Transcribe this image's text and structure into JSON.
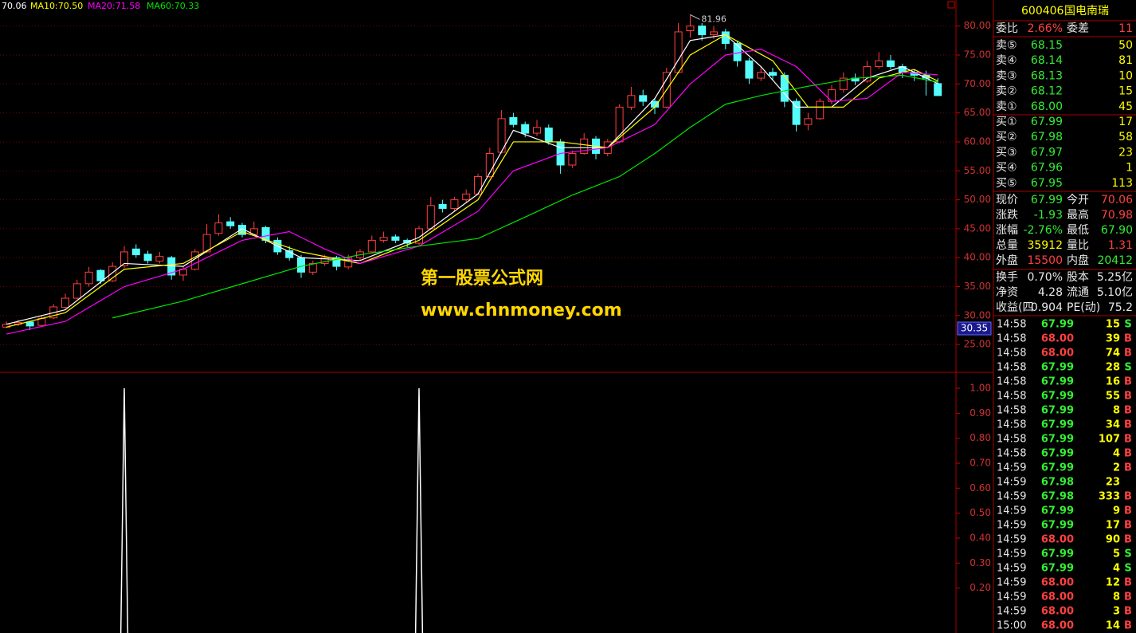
{
  "chart_data": [
    {
      "type": "candlestick",
      "candles": [
        [
          28,
          29,
          27.8,
          28.5
        ],
        [
          28.5,
          29.3,
          28.2,
          28.8
        ],
        [
          28.9,
          29.1,
          27.5,
          28.2
        ],
        [
          28.3,
          30,
          28,
          29.5
        ],
        [
          29.6,
          32,
          29.4,
          31.5
        ],
        [
          31.4,
          33.8,
          31,
          33
        ],
        [
          33,
          36.2,
          32.8,
          35.5
        ],
        [
          35.5,
          38.4,
          35,
          37.5
        ],
        [
          37.8,
          38,
          35.5,
          36
        ],
        [
          36,
          39.2,
          35.8,
          38.5
        ],
        [
          38.6,
          42,
          38.2,
          41
        ],
        [
          41.5,
          42.3,
          40,
          40.5
        ],
        [
          40.6,
          41.2,
          39,
          39.5
        ],
        [
          39.4,
          41,
          39,
          40.2
        ],
        [
          40,
          40.3,
          36.2,
          37
        ],
        [
          37,
          38.6,
          36,
          38
        ],
        [
          38,
          41.5,
          37.8,
          41
        ],
        [
          41,
          45.8,
          40.8,
          44
        ],
        [
          44.2,
          47.5,
          43.8,
          46
        ],
        [
          46.2,
          47,
          45,
          45.5
        ],
        [
          45.6,
          46,
          43.5,
          44
        ],
        [
          44,
          46.2,
          43.8,
          45
        ],
        [
          45.2,
          45.5,
          42.5,
          43
        ],
        [
          43,
          43.5,
          40.5,
          41
        ],
        [
          41.2,
          42,
          39.5,
          40
        ],
        [
          40,
          40.5,
          36.5,
          37.5
        ],
        [
          37.5,
          39.5,
          37,
          39
        ],
        [
          39,
          40.5,
          38.6,
          40
        ],
        [
          40,
          40.3,
          37.8,
          38.5
        ],
        [
          38.4,
          40.5,
          38,
          40
        ],
        [
          40,
          41.5,
          39.6,
          41
        ],
        [
          41,
          43.8,
          40.8,
          43
        ],
        [
          43,
          44.5,
          42.6,
          43.5
        ],
        [
          43.6,
          44,
          42.5,
          43
        ],
        [
          43,
          43.3,
          41.8,
          42.5
        ],
        [
          42.5,
          45.5,
          42.2,
          45
        ],
        [
          45,
          50.5,
          44.8,
          49
        ],
        [
          49.2,
          50,
          47.8,
          48.5
        ],
        [
          48.5,
          50.5,
          48,
          50
        ],
        [
          50,
          51.8,
          49.5,
          51
        ],
        [
          51,
          54.5,
          50.8,
          54
        ],
        [
          54,
          59,
          53.8,
          58
        ],
        [
          58.2,
          65.5,
          58,
          64
        ],
        [
          64.2,
          65,
          62.5,
          63
        ],
        [
          63,
          63.5,
          60.8,
          61.5
        ],
        [
          61.5,
          63.8,
          61,
          62.5
        ],
        [
          62.4,
          63,
          59.5,
          60
        ],
        [
          60,
          60.5,
          54.5,
          56
        ],
        [
          56,
          58.5,
          55.5,
          58
        ],
        [
          58,
          61.5,
          57.8,
          60.5
        ],
        [
          60.5,
          61,
          57,
          58
        ],
        [
          58,
          60.5,
          57.5,
          60
        ],
        [
          60,
          66.5,
          59.8,
          66
        ],
        [
          66,
          69.5,
          65.5,
          68
        ],
        [
          68,
          69,
          66.2,
          67
        ],
        [
          67,
          67.5,
          64.8,
          66
        ],
        [
          66,
          72.8,
          65.8,
          72
        ],
        [
          72,
          80.5,
          71.8,
          79
        ],
        [
          79.2,
          81.96,
          78,
          80
        ],
        [
          80,
          80.5,
          77.5,
          78.5
        ],
        [
          78.5,
          80,
          77.8,
          79
        ],
        [
          79,
          79.5,
          76,
          77
        ],
        [
          77,
          77.5,
          73,
          74
        ],
        [
          74,
          74.5,
          70,
          71
        ],
        [
          71,
          73,
          70.5,
          72
        ],
        [
          72,
          72.8,
          70.8,
          71.5
        ],
        [
          71.5,
          72,
          66,
          67
        ],
        [
          67,
          67.5,
          61.8,
          63
        ],
        [
          63,
          65,
          62,
          64
        ],
        [
          64,
          67.5,
          63.8,
          67
        ],
        [
          67,
          69.8,
          66.5,
          69
        ],
        [
          69,
          72,
          68.5,
          71
        ],
        [
          71,
          71.8,
          69.8,
          70.5
        ],
        [
          70.5,
          74,
          70.2,
          73
        ],
        [
          73,
          75.5,
          72.6,
          74
        ],
        [
          74,
          75,
          72.5,
          73
        ],
        [
          73,
          73.5,
          71,
          72
        ],
        [
          72,
          72.5,
          70.5,
          71.5
        ],
        [
          71.5,
          72.3,
          68,
          71
        ],
        [
          70.06,
          70.98,
          67.9,
          67.99
        ]
      ],
      "series": [
        {
          "name": "70.06",
          "color": "#ffffff",
          "x": [
            0,
            5,
            10,
            15,
            20,
            25,
            30,
            35,
            40,
            43,
            47,
            51,
            55,
            58,
            61,
            64,
            67,
            70,
            73,
            76,
            79
          ],
          "values": [
            28.5,
            31,
            39,
            38.5,
            45,
            40,
            39.5,
            43.5,
            51,
            62,
            59,
            59,
            67.5,
            77.5,
            78.5,
            73,
            66,
            66,
            71,
            73,
            70.06
          ]
        },
        {
          "name": "MA10:70.50",
          "color": "#ffff00",
          "x": [
            0,
            5,
            10,
            15,
            20,
            25,
            30,
            35,
            40,
            43,
            47,
            51,
            55,
            58,
            61,
            65,
            68,
            71,
            74,
            77,
            79
          ],
          "values": [
            28,
            30.5,
            38,
            39,
            44.5,
            41,
            39,
            43,
            50,
            60,
            60,
            59,
            66,
            75,
            78.5,
            74,
            66,
            66,
            71,
            72.5,
            70.5
          ]
        },
        {
          "name": "MA20:71.58",
          "color": "#ff00ff",
          "x": [
            0,
            5,
            10,
            15,
            20,
            24,
            27,
            30,
            35,
            40,
            43,
            47,
            51,
            55,
            58,
            61,
            64,
            67,
            70,
            73,
            76,
            79
          ],
          "values": [
            26.8,
            29,
            35,
            38,
            43,
            44.5,
            41.5,
            39,
            42,
            48,
            55,
            58,
            59,
            63,
            70,
            75,
            76,
            73,
            67,
            67.5,
            72,
            71.58
          ]
        },
        {
          "name": "MA60:70.33",
          "color": "#00e600",
          "x": [
            9,
            15,
            20,
            25,
            30,
            35,
            40,
            44,
            48,
            52,
            55,
            58,
            61,
            64,
            68,
            72,
            76,
            79
          ],
          "values": [
            29.6,
            32.5,
            35.5,
            38.5,
            40.5,
            42,
            43.3,
            47,
            50.8,
            54,
            58,
            62.5,
            66.5,
            68,
            69.6,
            71,
            71.5,
            70.33
          ]
        }
      ],
      "ylim": [
        20.2,
        84.5
      ],
      "yticks": [
        {
          "value": 25,
          "label": "25.00"
        },
        {
          "value": 30,
          "label": "30.00"
        },
        {
          "value": 35,
          "label": "35.00"
        },
        {
          "value": 40,
          "label": "40.00"
        },
        {
          "value": 45,
          "label": "45.00"
        },
        {
          "value": 50,
          "label": "50.00"
        },
        {
          "value": 55,
          "label": "55.00"
        },
        {
          "value": 60,
          "label": "60.00"
        },
        {
          "value": 65,
          "label": "65.00"
        },
        {
          "value": 70,
          "label": "70.00"
        },
        {
          "value": 75,
          "label": "75.00"
        },
        {
          "value": 80,
          "label": "80.00"
        }
      ],
      "grid": true,
      "cursor_price": "30.35",
      "watermark": [
        "第一股票公式网",
        "www.chnmoney.com"
      ]
    },
    {
      "type": "line",
      "color": "#ffffff",
      "x": [
        0,
        9.7,
        10,
        10.3,
        34.7,
        35,
        35.3,
        79
      ],
      "values": [
        0,
        0,
        1,
        0,
        0,
        1,
        0,
        0
      ],
      "ylim": [
        0.02,
        1.064
      ],
      "yticks": [
        {
          "value": 0.2,
          "label": "0.20"
        },
        {
          "value": 0.3,
          "label": "0.30"
        },
        {
          "value": 0.4,
          "label": "0.40"
        },
        {
          "value": 0.5,
          "label": "0.50"
        },
        {
          "value": 0.6,
          "label": "0.60"
        },
        {
          "value": 0.7,
          "label": "0.70"
        },
        {
          "value": 0.8,
          "label": "0.80"
        },
        {
          "value": 0.9,
          "label": "0.90"
        },
        {
          "value": 1,
          "label": "1.00"
        }
      ]
    }
  ],
  "panel": {
    "code": "600406",
    "name": "国电南瑞",
    "order_ratio": [
      "委比",
      "2.66%",
      "委差",
      "11"
    ],
    "sells": [
      [
        "卖⑤",
        "68.15",
        "50"
      ],
      [
        "卖④",
        "68.14",
        "81"
      ],
      [
        "卖③",
        "68.13",
        "10"
      ],
      [
        "卖②",
        "68.12",
        "15"
      ],
      [
        "卖①",
        "68.00",
        "45"
      ]
    ],
    "buys": [
      [
        "买①",
        "67.99",
        "17"
      ],
      [
        "买②",
        "67.98",
        "58"
      ],
      [
        "买③",
        "67.97",
        "23"
      ],
      [
        "买④",
        "67.96",
        "1"
      ],
      [
        "买⑤",
        "67.95",
        "113"
      ]
    ],
    "stats": [
      [
        "现价",
        "67.99",
        "今开",
        "70.06"
      ],
      [
        "涨跌",
        "-1.93",
        "最高",
        "70.98"
      ],
      [
        "涨幅",
        "-2.76%",
        "最低",
        "67.90"
      ],
      [
        "总量",
        "35912",
        "量比",
        "1.31"
      ],
      [
        "外盘",
        "15500",
        "内盘",
        "20412"
      ],
      [
        "换手",
        "0.70%",
        "股本",
        "5.25亿"
      ],
      [
        "净资",
        "4.28",
        "流通",
        "5.10亿"
      ],
      [
        "收益(四",
        "0.904",
        "PE(动)",
        "75.2"
      ]
    ],
    "ticks": [
      [
        "14:58",
        "67.99",
        "15",
        "S"
      ],
      [
        "14:58",
        "68.00",
        "39",
        "B"
      ],
      [
        "14:58",
        "68.00",
        "74",
        "B"
      ],
      [
        "14:58",
        "67.99",
        "28",
        "S"
      ],
      [
        "14:58",
        "67.99",
        "16",
        "B"
      ],
      [
        "14:58",
        "67.99",
        "55",
        "B"
      ],
      [
        "14:58",
        "67.99",
        "8",
        "B"
      ],
      [
        "14:58",
        "67.99",
        "34",
        "B"
      ],
      [
        "14:58",
        "67.99",
        "107",
        "B"
      ],
      [
        "14:58",
        "67.99",
        "4",
        "B"
      ],
      [
        "14:59",
        "67.99",
        "2",
        "B"
      ],
      [
        "14:59",
        "67.98",
        "23",
        null
      ],
      [
        "14:59",
        "67.98",
        "333",
        "B"
      ],
      [
        "14:59",
        "67.99",
        "9",
        "B"
      ],
      [
        "14:59",
        "67.99",
        "17",
        "B"
      ],
      [
        "14:59",
        "68.00",
        "90",
        "B"
      ],
      [
        "14:59",
        "67.99",
        "5",
        "S"
      ],
      [
        "14:59",
        "67.99",
        "4",
        "S"
      ],
      [
        "14:59",
        "68.00",
        "12",
        "B"
      ],
      [
        "14:59",
        "68.00",
        "8",
        "B"
      ],
      [
        "14:59",
        "68.00",
        "3",
        "B"
      ],
      [
        "15:00",
        "68.00",
        "14",
        "B"
      ]
    ]
  }
}
